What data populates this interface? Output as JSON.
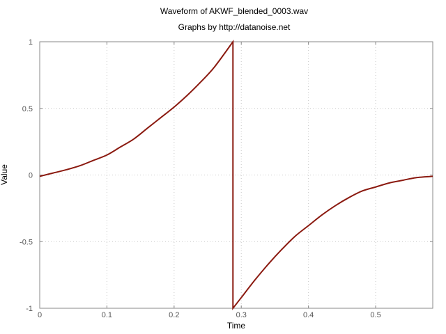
{
  "chart_data": {
    "type": "line",
    "title": "Waveform of AKWF_blended_0003.wav",
    "subtitle": "Graphs by http://datanoise.net",
    "xlabel": "Time",
    "ylabel": "Value",
    "xlim": [
      0,
      0.585
    ],
    "ylim": [
      -1,
      1
    ],
    "grid": true,
    "x_ticks": [
      0,
      0.1,
      0.2,
      0.3,
      0.4,
      0.5
    ],
    "x_tick_labels": [
      "0",
      "0.1",
      "0.2",
      "0.3",
      "0.4",
      "0.5"
    ],
    "y_ticks": [
      1,
      0.5,
      0,
      -0.5,
      -1
    ],
    "y_tick_labels": [
      "1",
      "0.5",
      "0",
      "-0.5",
      "-1"
    ],
    "series": [
      {
        "color": "#8b1a10",
        "x": [
          0,
          0.02,
          0.04,
          0.06,
          0.08,
          0.1,
          0.12,
          0.14,
          0.16,
          0.18,
          0.2,
          0.22,
          0.24,
          0.26,
          0.2876,
          0.2876,
          0.3,
          0.32,
          0.34,
          0.36,
          0.38,
          0.4,
          0.42,
          0.44,
          0.46,
          0.48,
          0.5,
          0.52,
          0.54,
          0.56,
          0.585
        ],
        "values": [
          -0.01,
          0.015,
          0.04,
          0.07,
          0.11,
          0.15,
          0.21,
          0.27,
          0.35,
          0.43,
          0.51,
          0.6,
          0.7,
          0.81,
          1.0,
          -1.0,
          -0.92,
          -0.79,
          -0.67,
          -0.56,
          -0.46,
          -0.38,
          -0.3,
          -0.23,
          -0.17,
          -0.12,
          -0.09,
          -0.06,
          -0.04,
          -0.02,
          -0.01
        ]
      }
    ]
  }
}
